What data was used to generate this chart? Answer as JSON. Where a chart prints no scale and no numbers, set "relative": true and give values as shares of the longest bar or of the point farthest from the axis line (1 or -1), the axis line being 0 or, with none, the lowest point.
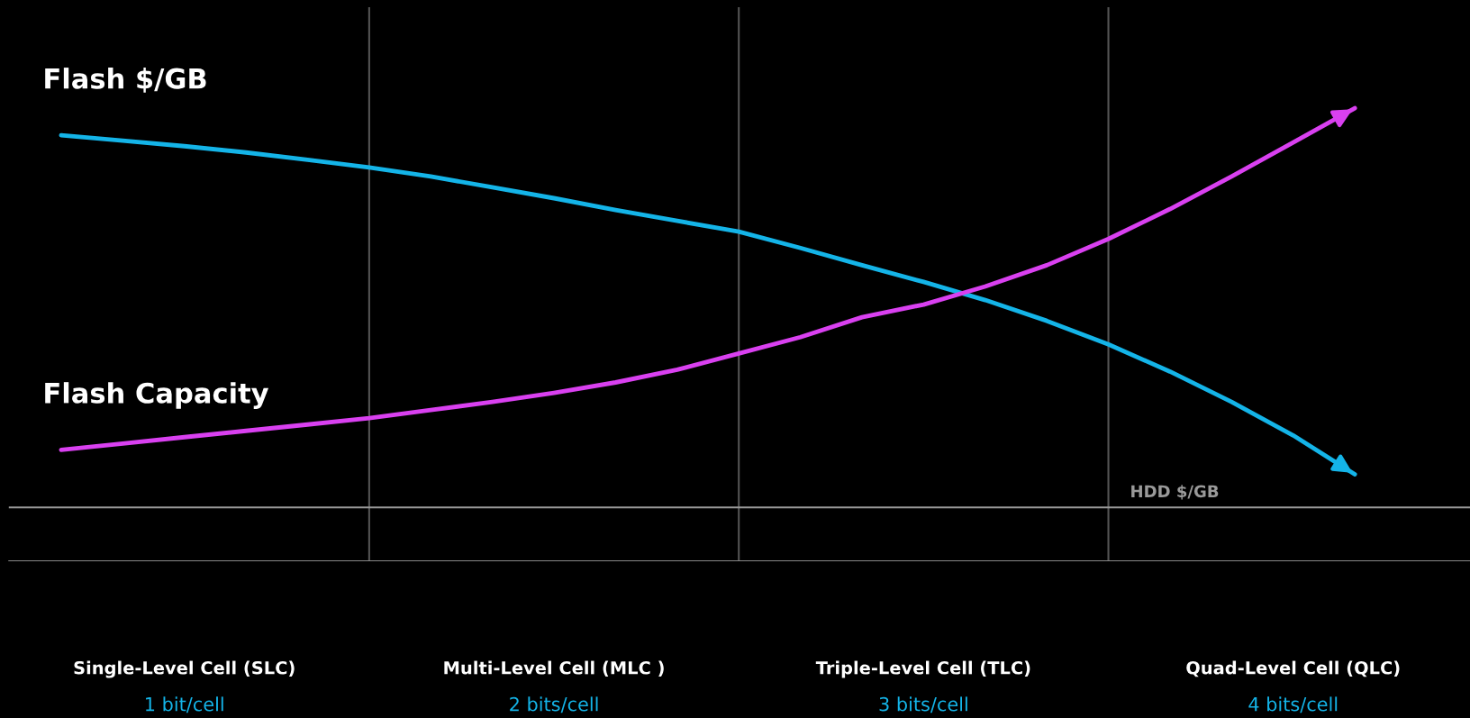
{
  "chart_data": {
    "type": "line",
    "relative": true,
    "categories": [
      null,
      null,
      "Single-Level Cell (SLC)",
      null,
      null,
      null,
      null,
      null,
      "Multi-Level Cell (MLC )",
      null,
      null,
      null,
      null,
      null,
      "Triple-Level Cell (TLC)",
      null,
      null,
      null,
      null,
      null,
      "Quad-Level Cell (QLC)",
      null
    ],
    "series": [
      {
        "name": "Flash $/GB",
        "color": "#14b4e8",
        "values": [
          0.94,
          0.928,
          0.916,
          0.902,
          0.886,
          0.869,
          0.849,
          0.825,
          0.801,
          0.775,
          0.751,
          0.727,
          0.691,
          0.653,
          0.616,
          0.576,
          0.53,
          0.478,
          0.418,
          0.351,
          0.277,
          0.191
        ]
      },
      {
        "name": "Flash Capacity",
        "color": "#d940f0",
        "values": [
          0.245,
          0.259,
          0.273,
          0.287,
          0.301,
          0.315,
          0.333,
          0.351,
          0.371,
          0.394,
          0.422,
          0.458,
          0.494,
          0.538,
          0.566,
          0.606,
          0.653,
          0.711,
          0.777,
          0.849,
          0.924,
          1.0
        ]
      }
    ],
    "annotations": [
      "1 bit/cell",
      "2 bits/cell",
      "3 bits/cell",
      "4 bits/cell"
    ],
    "ref_lines": [
      {
        "axis": "y",
        "value": 0.118,
        "label": "HDD $/GB",
        "color": "#9a9a9a"
      }
    ],
    "grid": "x",
    "legend": false,
    "marker": "none",
    "line_style": "solid"
  }
}
